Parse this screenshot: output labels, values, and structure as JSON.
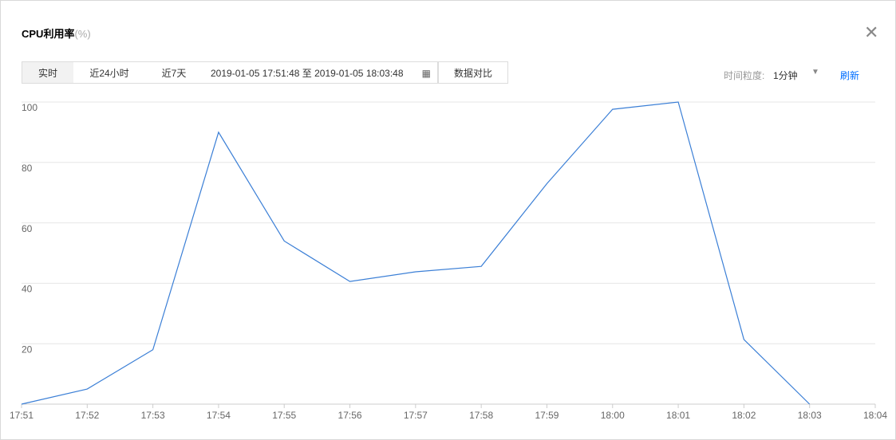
{
  "header": {
    "title": "CPU利用率",
    "title_unit": "(%)"
  },
  "toolbar": {
    "tabs": [
      "实时",
      "近24小时",
      "近7天"
    ],
    "date_range": "2019-01-05 17:51:48 至 2019-01-05 18:03:48",
    "compare": "数据对比",
    "granularity_label": "时间粒度:",
    "granularity": "1分钟",
    "refresh": "刷新"
  },
  "chart_data": {
    "type": "line",
    "categories": [
      "17:51",
      "17:52",
      "17:53",
      "17:54",
      "17:55",
      "17:56",
      "17:57",
      "17:58",
      "17:59",
      "18:00",
      "18:01",
      "18:02",
      "18:03",
      "18:04"
    ],
    "series": [
      {
        "name": "CPU利用率",
        "color": "#3b7fd6",
        "values": [
          0,
          5,
          18,
          90,
          54,
          40.6,
          43.8,
          45.6,
          73,
          97.6,
          100,
          21.4,
          0,
          null
        ]
      }
    ],
    "ylim": [
      0,
      100
    ],
    "yticks": [
      20,
      40,
      60,
      80,
      100
    ],
    "grid": true
  }
}
